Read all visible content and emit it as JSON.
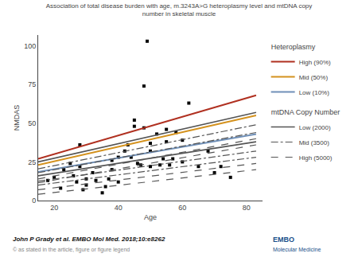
{
  "chart_data": {
    "type": "scatter",
    "title": "Association of total disease burden with age, m.3243A>G heteroplasmy level and mtDNA copy\nnumber in skeletal muscle",
    "xlabel": "Age",
    "ylabel": "NMDAS",
    "xlim": [
      15,
      85
    ],
    "ylim": [
      0,
      107
    ],
    "xticks": [
      20,
      40,
      60,
      80
    ],
    "yticks": [
      0,
      25,
      50,
      75,
      100
    ],
    "grid": false,
    "legend": "right",
    "series": [
      {
        "type": "scatter",
        "color": "#000000",
        "marker": "square",
        "x": [
          18,
          20,
          22,
          23,
          25,
          26,
          27,
          28,
          28,
          29,
          30,
          30,
          32,
          33,
          35,
          36,
          37,
          38,
          38,
          40,
          40,
          42,
          43,
          44,
          45,
          45,
          46,
          47,
          48,
          48,
          49,
          50,
          50,
          50,
          52,
          53,
          54,
          55,
          55,
          56,
          57,
          58,
          60,
          60,
          62,
          65,
          68,
          70,
          72,
          75
        ],
        "values": [
          13,
          15,
          8,
          20,
          24,
          16,
          12,
          22,
          36,
          7,
          10,
          14,
          18,
          13,
          5,
          9,
          14,
          20,
          26,
          12,
          28,
          32,
          36,
          28,
          48,
          52,
          24,
          23,
          47,
          74,
          103,
          32,
          37,
          22,
          43,
          23,
          27,
          38,
          46,
          23,
          27,
          44,
          25,
          39,
          63,
          22,
          32,
          18,
          22,
          15
        ]
      },
      {
        "type": "line",
        "group": "Heteroplasmy",
        "name": "High (90%)",
        "color": "#b03020",
        "line_style": "solid",
        "x": [
          15,
          83
        ],
        "values": [
          27,
          68
        ]
      },
      {
        "type": "line",
        "group": "Heteroplasmy",
        "name": "Mid (50%)",
        "color": "#d4921e",
        "line_style": "solid",
        "x": [
          15,
          83
        ],
        "values": [
          23,
          55
        ]
      },
      {
        "type": "line",
        "group": "Heteroplasmy",
        "name": "Low (10%)",
        "color": "#7090b8",
        "line_style": "solid",
        "x": [
          15,
          83
        ],
        "values": [
          18.5,
          43
        ]
      },
      {
        "type": "line",
        "group": "mtDNA Copy Number",
        "name": "Low (2000)",
        "color": "#555555",
        "line_style": "solid",
        "x": [
          15,
          83
        ],
        "values": [
          25,
          57
        ]
      },
      {
        "type": "line",
        "group": "mtDNA Copy Number",
        "name": "Mid (3500)",
        "color": "#555555",
        "line_style": "dashdot",
        "x": [
          15,
          83
        ],
        "values": [
          20.5,
          49
        ]
      },
      {
        "type": "line",
        "group": "mtDNA Copy Number",
        "name": "Mid (3500)",
        "color": "#555555",
        "line_style": "dashdot",
        "x": [
          15,
          83
        ],
        "values": [
          18,
          44
        ]
      },
      {
        "type": "line",
        "group": "mtDNA Copy Number",
        "name": "High (5000)",
        "color": "#555555",
        "line_style": "dash",
        "x": [
          15,
          83
        ],
        "values": [
          14,
          40
        ]
      },
      {
        "type": "line",
        "group": "mtDNA Copy Number",
        "name": "High (5000)",
        "color": "#555555",
        "line_style": "dash",
        "x": [
          15,
          83
        ],
        "values": [
          11.5,
          36
        ]
      },
      {
        "type": "line",
        "group": "mtDNA Copy Number",
        "name": "Low (2000)",
        "color": "#555555",
        "line_style": "solid",
        "x": [
          15,
          83
        ],
        "values": [
          16,
          38
        ]
      },
      {
        "type": "line",
        "group": "mtDNA Copy Number",
        "name": "Mid (3500)",
        "color": "#555555",
        "line_style": "dashdot",
        "x": [
          15,
          83
        ],
        "values": [
          12.5,
          32
        ]
      },
      {
        "type": "line",
        "group": "mtDNA Copy Number",
        "name": "Mid (3500)",
        "color": "#555555",
        "line_style": "dashdot",
        "x": [
          15,
          83
        ],
        "values": [
          10,
          28
        ]
      },
      {
        "type": "line",
        "group": "mtDNA Copy Number",
        "name": "High (5000)",
        "color": "#555555",
        "line_style": "dash",
        "x": [
          15,
          83
        ],
        "values": [
          7,
          24
        ]
      },
      {
        "type": "line",
        "group": "mtDNA Copy Number",
        "name": "High (5000)",
        "color": "#555555",
        "line_style": "dash",
        "x": [
          15,
          83
        ],
        "values": [
          4,
          20
        ]
      }
    ],
    "annotations": [
      "John P Grady et al. EMBO Mol Med. 2018;10:e8262",
      "© as stated in the article, figure or figure legend",
      "EMBO",
      "Molecular Medicine"
    ]
  }
}
